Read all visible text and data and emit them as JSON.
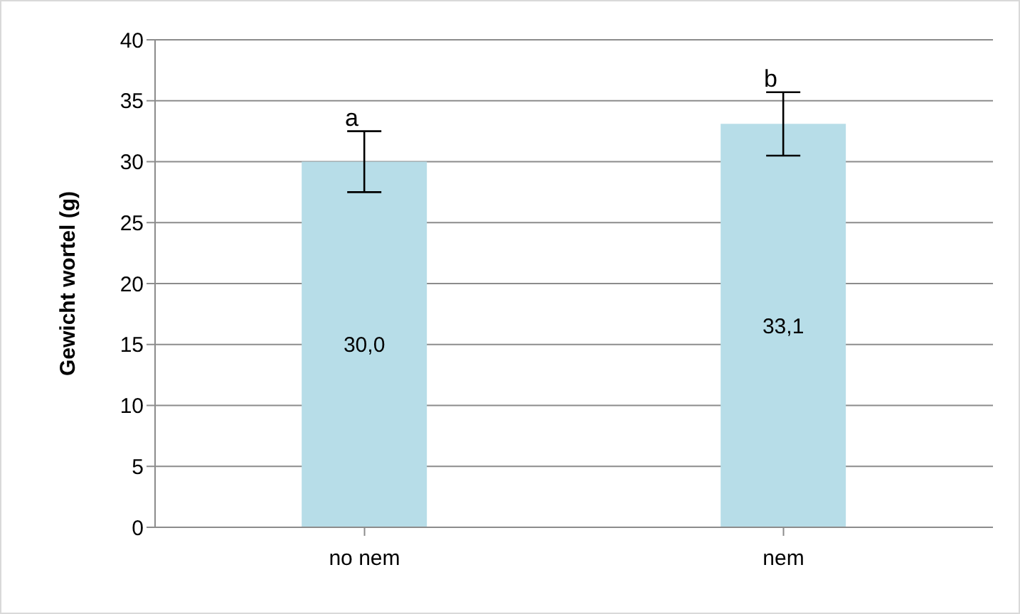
{
  "chart_data": {
    "type": "bar",
    "ylabel": "Gewicht wortel (g)",
    "categories": [
      "no nem",
      "nem"
    ],
    "values": [
      30.0,
      33.1
    ],
    "value_labels": [
      "30,0",
      "33,1"
    ],
    "errors": [
      2.5,
      2.6
    ],
    "color": "#b7dde8",
    "ylim": [
      0,
      40
    ],
    "yticks": [
      0,
      5,
      10,
      15,
      20,
      25,
      30,
      35,
      40
    ],
    "grid": "y",
    "annotations": [
      "a",
      "b"
    ]
  }
}
